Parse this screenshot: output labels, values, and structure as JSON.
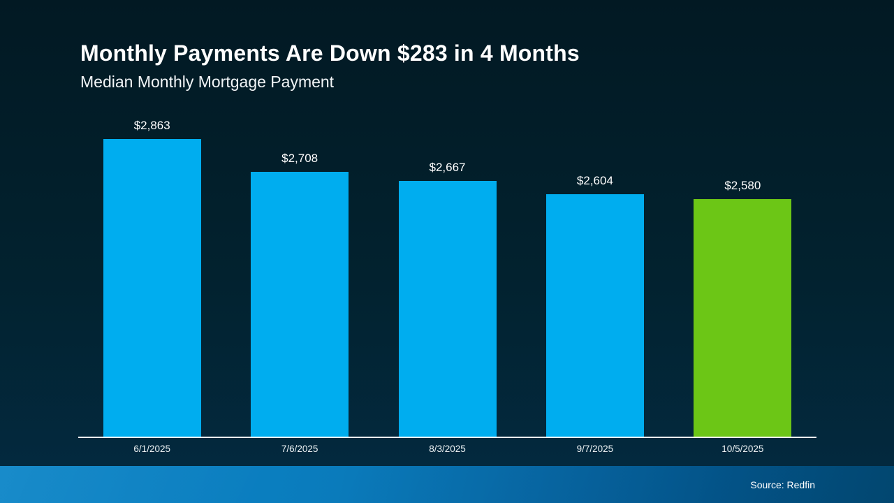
{
  "slide": {
    "title": "Monthly Payments Are Down $283 in 4 Months",
    "subtitle": "Median Monthly Mortgage Payment",
    "source": "Source: Redfin"
  },
  "colors": {
    "background_top": "#021923",
    "background_bottom": "#032A40",
    "bar_blue": "#00ADEF",
    "bar_green": "#6CC616",
    "axis": "#FFFFFF",
    "footer_left": "#0C85C7",
    "footer_right": "#02507F"
  },
  "chart_data": {
    "type": "bar",
    "title": "Monthly Payments Are Down $283 in 4 Months",
    "subtitle": "Median Monthly Mortgage Payment",
    "categories": [
      "6/1/2025",
      "7/6/2025",
      "8/3/2025",
      "9/7/2025",
      "10/5/2025"
    ],
    "values": [
      2863,
      2708,
      2667,
      2604,
      2580
    ],
    "value_labels": [
      "$2,863",
      "$2,708",
      "$2,667",
      "$2,604",
      "$2,580"
    ],
    "bar_colors": [
      "#00ADEF",
      "#00ADEF",
      "#00ADEF",
      "#00ADEF",
      "#6CC616"
    ],
    "xlabel": "",
    "ylabel": "",
    "ylim": [
      1461,
      3008
    ],
    "grid": false,
    "legend": false,
    "annotation": "Source: Redfin"
  }
}
